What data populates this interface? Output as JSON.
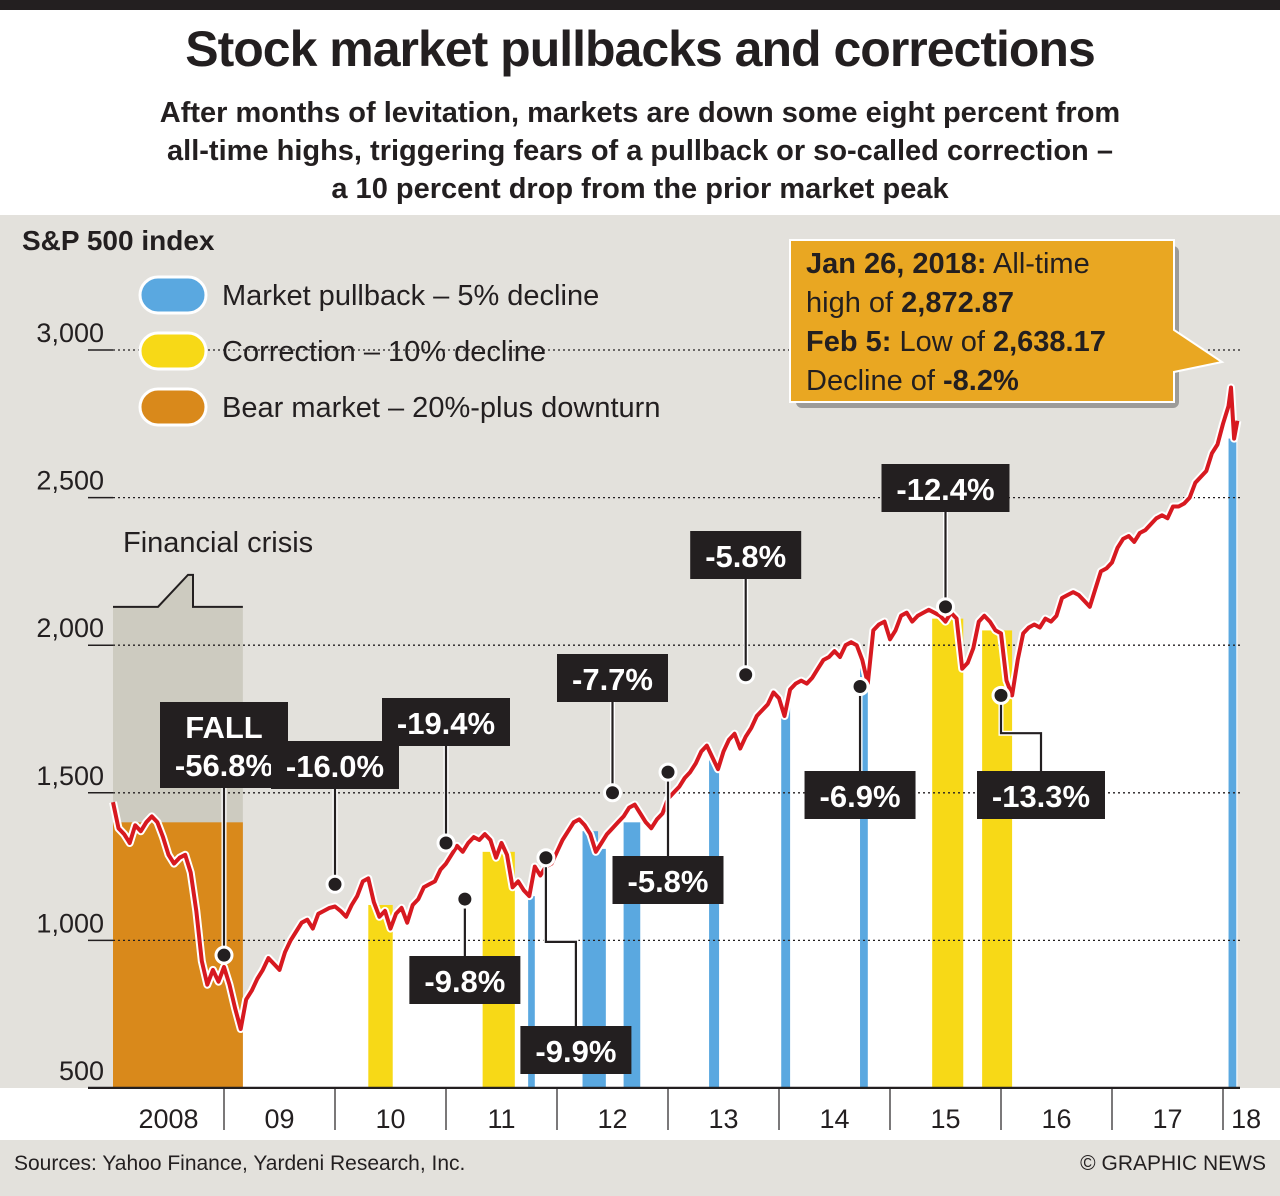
{
  "title": "Stock market pullbacks and corrections",
  "subtitle": [
    "After months of levitation, markets are down some eight percent from",
    "all-time highs, triggering fears of a pullback or so-called correction –",
    "a 10 percent drop from the prior market peak"
  ],
  "footer": {
    "sources": "Sources: Yahoo Finance, Yardeni Research, Inc.",
    "credit": "© GRAPHIC NEWS"
  },
  "colors": {
    "pullback": "#5aa8e0",
    "correction": "#f7d917",
    "bear": "#d9891b",
    "line": "#d71920",
    "panel": "#e3e1dc",
    "crisis": "#cdcbc0",
    "callout": "#e9a722",
    "label_bg": "#231f20"
  },
  "chart_data": {
    "type": "line",
    "title": "S&P 500 index",
    "ylabel": "S&P 500 index",
    "ylim": [
      500,
      3000
    ],
    "y_ticks": [
      500,
      1000,
      1500,
      2000,
      2500,
      3000
    ],
    "y_tick_labels": [
      "500",
      "1,000",
      "1,500",
      "2,000",
      "2,500",
      "3,000"
    ],
    "x_labels": [
      "2008",
      "09",
      "10",
      "11",
      "12",
      "13",
      "14",
      "15",
      "16",
      "17",
      "18"
    ],
    "legend": [
      {
        "key": "pullback",
        "label": "Market pullback – 5% decline"
      },
      {
        "key": "correction",
        "label": "Correction – 10% decline"
      },
      {
        "key": "bear",
        "label": "Bear market – 20%-plus downturn"
      }
    ],
    "series": [
      {
        "name": "S&P 500",
        "points": [
          [
            2008.0,
            1468
          ],
          [
            2008.05,
            1380
          ],
          [
            2008.1,
            1360
          ],
          [
            2008.15,
            1330
          ],
          [
            2008.2,
            1390
          ],
          [
            2008.25,
            1370
          ],
          [
            2008.3,
            1400
          ],
          [
            2008.35,
            1420
          ],
          [
            2008.4,
            1400
          ],
          [
            2008.45,
            1350
          ],
          [
            2008.5,
            1290
          ],
          [
            2008.55,
            1260
          ],
          [
            2008.6,
            1280
          ],
          [
            2008.65,
            1290
          ],
          [
            2008.7,
            1230
          ],
          [
            2008.75,
            1100
          ],
          [
            2008.8,
            930
          ],
          [
            2008.85,
            850
          ],
          [
            2008.9,
            900
          ],
          [
            2008.95,
            860
          ],
          [
            2009.0,
            910
          ],
          [
            2009.05,
            850
          ],
          [
            2009.1,
            770
          ],
          [
            2009.15,
            700
          ],
          [
            2009.2,
            800
          ],
          [
            2009.25,
            830
          ],
          [
            2009.3,
            870
          ],
          [
            2009.35,
            900
          ],
          [
            2009.4,
            940
          ],
          [
            2009.45,
            920
          ],
          [
            2009.5,
            900
          ],
          [
            2009.55,
            960
          ],
          [
            2009.6,
            1000
          ],
          [
            2009.65,
            1030
          ],
          [
            2009.7,
            1060
          ],
          [
            2009.75,
            1070
          ],
          [
            2009.8,
            1040
          ],
          [
            2009.85,
            1090
          ],
          [
            2009.9,
            1100
          ],
          [
            2009.95,
            1110
          ],
          [
            2010.0,
            1115
          ],
          [
            2010.05,
            1100
          ],
          [
            2010.1,
            1080
          ],
          [
            2010.15,
            1120
          ],
          [
            2010.2,
            1150
          ],
          [
            2010.25,
            1200
          ],
          [
            2010.3,
            1210
          ],
          [
            2010.35,
            1130
          ],
          [
            2010.4,
            1080
          ],
          [
            2010.45,
            1100
          ],
          [
            2010.5,
            1040
          ],
          [
            2010.55,
            1090
          ],
          [
            2010.6,
            1110
          ],
          [
            2010.65,
            1060
          ],
          [
            2010.7,
            1120
          ],
          [
            2010.75,
            1140
          ],
          [
            2010.8,
            1180
          ],
          [
            2010.85,
            1190
          ],
          [
            2010.9,
            1200
          ],
          [
            2010.95,
            1240
          ],
          [
            2011.0,
            1260
          ],
          [
            2011.05,
            1290
          ],
          [
            2011.1,
            1320
          ],
          [
            2011.15,
            1300
          ],
          [
            2011.2,
            1330
          ],
          [
            2011.25,
            1350
          ],
          [
            2011.3,
            1340
          ],
          [
            2011.35,
            1360
          ],
          [
            2011.4,
            1340
          ],
          [
            2011.45,
            1280
          ],
          [
            2011.5,
            1330
          ],
          [
            2011.55,
            1290
          ],
          [
            2011.6,
            1180
          ],
          [
            2011.65,
            1200
          ],
          [
            2011.7,
            1170
          ],
          [
            2011.75,
            1150
          ],
          [
            2011.8,
            1250
          ],
          [
            2011.85,
            1220
          ],
          [
            2011.9,
            1250
          ],
          [
            2011.95,
            1260
          ],
          [
            2012.0,
            1300
          ],
          [
            2012.05,
            1340
          ],
          [
            2012.1,
            1370
          ],
          [
            2012.15,
            1400
          ],
          [
            2012.2,
            1410
          ],
          [
            2012.25,
            1390
          ],
          [
            2012.3,
            1360
          ],
          [
            2012.35,
            1300
          ],
          [
            2012.4,
            1330
          ],
          [
            2012.45,
            1360
          ],
          [
            2012.5,
            1380
          ],
          [
            2012.55,
            1400
          ],
          [
            2012.6,
            1420
          ],
          [
            2012.65,
            1450
          ],
          [
            2012.7,
            1460
          ],
          [
            2012.75,
            1430
          ],
          [
            2012.8,
            1400
          ],
          [
            2012.85,
            1380
          ],
          [
            2012.9,
            1410
          ],
          [
            2012.95,
            1430
          ],
          [
            2013.0,
            1480
          ],
          [
            2013.05,
            1500
          ],
          [
            2013.1,
            1520
          ],
          [
            2013.15,
            1550
          ],
          [
            2013.2,
            1570
          ],
          [
            2013.25,
            1600
          ],
          [
            2013.3,
            1640
          ],
          [
            2013.35,
            1660
          ],
          [
            2013.4,
            1620
          ],
          [
            2013.45,
            1580
          ],
          [
            2013.5,
            1640
          ],
          [
            2013.55,
            1680
          ],
          [
            2013.6,
            1700
          ],
          [
            2013.65,
            1650
          ],
          [
            2013.7,
            1690
          ],
          [
            2013.75,
            1720
          ],
          [
            2013.8,
            1760
          ],
          [
            2013.85,
            1780
          ],
          [
            2013.9,
            1800
          ],
          [
            2013.95,
            1840
          ],
          [
            2014.0,
            1820
          ],
          [
            2014.05,
            1760
          ],
          [
            2014.1,
            1850
          ],
          [
            2014.15,
            1870
          ],
          [
            2014.2,
            1880
          ],
          [
            2014.25,
            1870
          ],
          [
            2014.3,
            1890
          ],
          [
            2014.35,
            1920
          ],
          [
            2014.4,
            1950
          ],
          [
            2014.45,
            1960
          ],
          [
            2014.5,
            1980
          ],
          [
            2014.55,
            1960
          ],
          [
            2014.6,
            2000
          ],
          [
            2014.65,
            2010
          ],
          [
            2014.7,
            2000
          ],
          [
            2014.75,
            1950
          ],
          [
            2014.8,
            1870
          ],
          [
            2014.85,
            2050
          ],
          [
            2014.9,
            2070
          ],
          [
            2014.95,
            2080
          ],
          [
            2015.0,
            2020
          ],
          [
            2015.05,
            2050
          ],
          [
            2015.1,
            2100
          ],
          [
            2015.15,
            2110
          ],
          [
            2015.2,
            2080
          ],
          [
            2015.25,
            2100
          ],
          [
            2015.3,
            2110
          ],
          [
            2015.35,
            2120
          ],
          [
            2015.4,
            2110
          ],
          [
            2015.45,
            2100
          ],
          [
            2015.5,
            2080
          ],
          [
            2015.55,
            2110
          ],
          [
            2015.6,
            2090
          ],
          [
            2015.65,
            1920
          ],
          [
            2015.7,
            1940
          ],
          [
            2015.75,
            1990
          ],
          [
            2015.8,
            2080
          ],
          [
            2015.85,
            2100
          ],
          [
            2015.9,
            2080
          ],
          [
            2015.95,
            2050
          ],
          [
            2016.0,
            2040
          ],
          [
            2016.05,
            1880
          ],
          [
            2016.1,
            1830
          ],
          [
            2016.15,
            1950
          ],
          [
            2016.2,
            2040
          ],
          [
            2016.25,
            2060
          ],
          [
            2016.3,
            2070
          ],
          [
            2016.35,
            2060
          ],
          [
            2016.4,
            2090
          ],
          [
            2016.45,
            2080
          ],
          [
            2016.5,
            2100
          ],
          [
            2016.55,
            2160
          ],
          [
            2016.6,
            2170
          ],
          [
            2016.65,
            2180
          ],
          [
            2016.7,
            2170
          ],
          [
            2016.75,
            2150
          ],
          [
            2016.8,
            2130
          ],
          [
            2016.85,
            2190
          ],
          [
            2016.9,
            2250
          ],
          [
            2016.95,
            2260
          ],
          [
            2017.0,
            2280
          ],
          [
            2017.05,
            2330
          ],
          [
            2017.1,
            2360
          ],
          [
            2017.15,
            2370
          ],
          [
            2017.2,
            2350
          ],
          [
            2017.25,
            2380
          ],
          [
            2017.3,
            2390
          ],
          [
            2017.35,
            2410
          ],
          [
            2017.4,
            2430
          ],
          [
            2017.45,
            2440
          ],
          [
            2017.5,
            2430
          ],
          [
            2017.55,
            2470
          ],
          [
            2017.6,
            2470
          ],
          [
            2017.65,
            2480
          ],
          [
            2017.7,
            2500
          ],
          [
            2017.75,
            2550
          ],
          [
            2017.8,
            2570
          ],
          [
            2017.85,
            2590
          ],
          [
            2017.9,
            2650
          ],
          [
            2017.95,
            2680
          ],
          [
            2018.0,
            2750
          ],
          [
            2018.05,
            2810
          ],
          [
            2018.072,
            2872.87
          ],
          [
            2018.1,
            2700
          ],
          [
            2018.13,
            2760
          ]
        ]
      }
    ],
    "bands": [
      {
        "type": "bear",
        "x0": 2008.0,
        "x1": 2009.17,
        "top": 1400
      },
      {
        "type": "correction",
        "x0": 2010.3,
        "x1": 2010.52,
        "top": 1120
      },
      {
        "type": "correction",
        "x0": 2011.33,
        "x1": 2011.62,
        "top": 1300
      },
      {
        "type": "pullback",
        "x0": 2011.74,
        "x1": 2011.8,
        "top": 1150
      },
      {
        "type": "pullback",
        "x0": 2012.23,
        "x1": 2012.37,
        "top": 1370
      },
      {
        "type": "pullback",
        "x0": 2012.33,
        "x1": 2012.44,
        "top": 1310
      },
      {
        "type": "pullback",
        "x0": 2012.6,
        "x1": 2012.75,
        "top": 1400
      },
      {
        "type": "pullback",
        "x0": 2013.37,
        "x1": 2013.46,
        "top": 1610
      },
      {
        "type": "pullback",
        "x0": 2014.02,
        "x1": 2014.1,
        "top": 1790
      },
      {
        "type": "pullback",
        "x0": 2014.73,
        "x1": 2014.8,
        "top": 1940
      },
      {
        "type": "correction",
        "x0": 2015.38,
        "x1": 2015.66,
        "top": 2090
      },
      {
        "type": "correction",
        "x0": 2015.83,
        "x1": 2016.1,
        "top": 2050
      },
      {
        "type": "pullback",
        "x0": 2018.05,
        "x1": 2018.12,
        "top": 2700
      }
    ],
    "shaded_region": {
      "label": "Financial crisis",
      "x0": 2008.0,
      "x1": 2009.17,
      "top": 2130
    },
    "annotations": [
      {
        "lines": [
          "FALL",
          "-56.8%"
        ],
        "x": 2009.0,
        "y": 950
      },
      {
        "lines": [
          "-16.0%"
        ],
        "x": 2010.0,
        "y": 1190
      },
      {
        "lines": [
          "-19.4%"
        ],
        "x": 2011.0,
        "y": 1330
      },
      {
        "lines": [
          "-9.8%"
        ],
        "x": 2011.17,
        "y": 1140
      },
      {
        "lines": [
          "-9.9%"
        ],
        "x": 2011.9,
        "y": 1280
      },
      {
        "lines": [
          "-7.7%"
        ],
        "x": 2012.5,
        "y": 1500
      },
      {
        "lines": [
          "-5.8%"
        ],
        "x": 2013.0,
        "y": 1570
      },
      {
        "lines": [
          "-5.8%"
        ],
        "x": 2013.7,
        "y": 1900
      },
      {
        "lines": [
          "-6.9%"
        ],
        "x": 2014.73,
        "y": 1860
      },
      {
        "lines": [
          "-12.4%"
        ],
        "x": 2015.5,
        "y": 2130
      },
      {
        "lines": [
          "-13.3%"
        ],
        "x": 2016.0,
        "y": 1830
      }
    ],
    "callout": {
      "lines": [
        [
          {
            "t": "Jan 26, 2018:",
            "b": true
          },
          {
            "t": " All-time",
            "b": false
          }
        ],
        [
          {
            "t": "high of ",
            "b": false
          },
          {
            "t": "2,872.87",
            "b": true
          }
        ],
        [
          {
            "t": "Feb 5:",
            "b": true
          },
          {
            "t": " Low of ",
            "b": false
          },
          {
            "t": "2,638.17",
            "b": true
          }
        ],
        [
          {
            "t": "Decline of ",
            "b": false
          },
          {
            "t": "-8.2%",
            "b": true
          }
        ]
      ]
    }
  }
}
